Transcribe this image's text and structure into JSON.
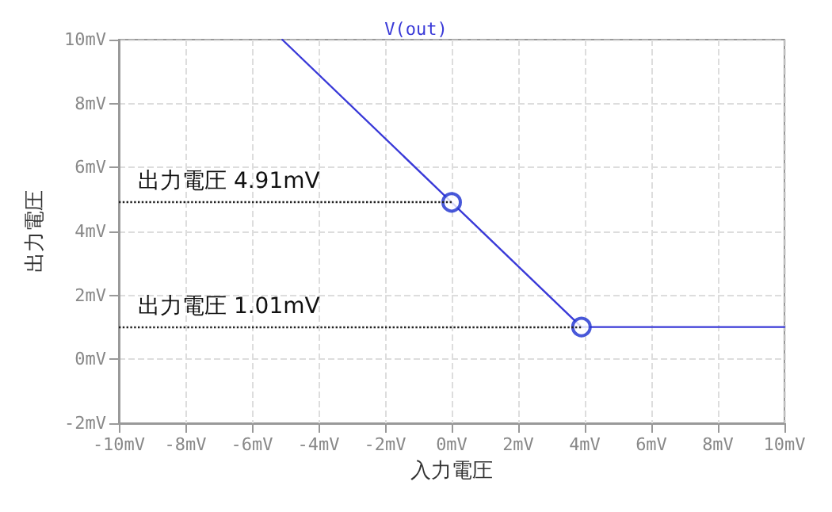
{
  "chart_data": {
    "type": "line",
    "title": "V(out)",
    "xlabel": "入力電圧",
    "ylabel": "出力電圧",
    "xlim": [
      -10,
      10
    ],
    "xticks": [
      {
        "value": -10,
        "label": "-10mV"
      },
      {
        "value": -8,
        "label": "-8mV"
      },
      {
        "value": -6,
        "label": "-6mV"
      },
      {
        "value": -4,
        "label": "-4mV"
      },
      {
        "value": -2,
        "label": "-2mV"
      },
      {
        "value": 0,
        "label": "0mV"
      },
      {
        "value": 2,
        "label": "2mV"
      },
      {
        "value": 4,
        "label": "4mV"
      },
      {
        "value": 6,
        "label": "6mV"
      },
      {
        "value": 8,
        "label": "8mV"
      },
      {
        "value": 10,
        "label": "10mV"
      }
    ],
    "ylim": [
      -2,
      10
    ],
    "yticks": [
      {
        "value": -2,
        "label": "-2mV"
      },
      {
        "value": 0,
        "label": "0mV"
      },
      {
        "value": 2,
        "label": "2mV"
      },
      {
        "value": 4,
        "label": "4mV"
      },
      {
        "value": 6,
        "label": "6mV"
      },
      {
        "value": 8,
        "label": "8mV"
      },
      {
        "value": 10,
        "label": "10mV"
      }
    ],
    "grid": true,
    "series": [
      {
        "color": "#3a3ad8",
        "x": [
          -5.09,
          0,
          3.9,
          10
        ],
        "values": [
          10,
          4.91,
          1.01,
          1.01
        ],
        "marker": "none"
      },
      {
        "type": "scatter",
        "color": "#1a2ed0",
        "x": [
          0,
          3.9
        ],
        "values": [
          4.91,
          1.01
        ],
        "marker": "circle"
      }
    ],
    "annotations": [
      {
        "text": "出力電圧 4.91mV",
        "x": 0,
        "y": 4.91
      },
      {
        "text": "出力電圧 1.01mV",
        "x": 3.9,
        "y": 1.01
      }
    ]
  }
}
